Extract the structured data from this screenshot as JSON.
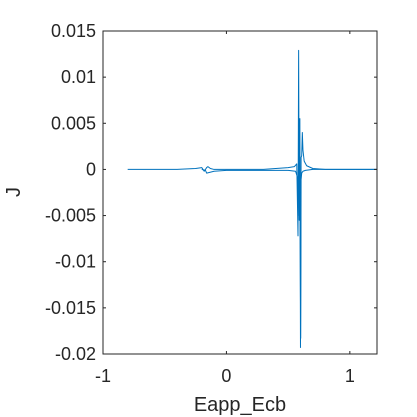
{
  "chart_data": {
    "type": "line",
    "title": "",
    "xlabel": "Eapp_Ecb",
    "ylabel": "J",
    "xlim": [
      -1,
      1.22
    ],
    "ylim": [
      -0.02,
      0.015
    ],
    "xticks": [
      -1,
      0,
      1
    ],
    "xtick_labels": [
      "-1",
      "0",
      "1"
    ],
    "yticks": [
      -0.02,
      -0.015,
      -0.01,
      -0.005,
      0,
      0.005,
      0.01,
      0.015
    ],
    "ytick_labels": [
      "-0.02",
      "-0.015",
      "-0.01",
      "-0.005",
      "0",
      "0.005",
      "0.01",
      "0.015"
    ],
    "grid": false,
    "line_color": "#0072BD",
    "series": [
      {
        "x": [
          -0.8,
          -0.4,
          -0.25,
          -0.2,
          -0.18,
          -0.16,
          -0.15,
          -0.13,
          -0.1,
          0.0,
          0.1,
          0.2,
          0.3,
          0.4,
          0.5,
          0.55,
          0.57,
          0.58,
          0.585,
          0.59,
          0.595,
          0.6,
          0.605,
          0.61,
          0.615,
          0.62,
          0.63,
          0.65,
          0.7,
          0.8,
          1.0,
          1.22
        ],
        "y": [
          0,
          0,
          0.0001,
          0.0002,
          -0.0002,
          0.0002,
          0.0003,
          0.0001,
          0,
          0,
          0,
          0,
          0,
          0.0001,
          0.0002,
          0.0003,
          0.0006,
          -0.0072,
          0.0129,
          -0.0055,
          0.0055,
          -0.0193,
          0.0013,
          0.0015,
          0.004,
          0.0021,
          0.0009,
          0.0004,
          0.0001,
          0,
          0,
          0
        ]
      },
      {
        "x": [
          -0.2,
          -0.17,
          -0.16,
          -0.1,
          0.0,
          0.2,
          0.4,
          0.5,
          0.56,
          0.575,
          0.58,
          0.585,
          0.59,
          0.595,
          0.6,
          0.602,
          0.605,
          0.61,
          0.62,
          0.64,
          0.7,
          0.8,
          1.0,
          1.22
        ],
        "y": [
          0,
          -0.0001,
          -0.0004,
          -0.0002,
          -0.0001,
          -0.0001,
          -0.0001,
          -0.0001,
          -0.0002,
          -0.0008,
          -0.0032,
          0.0007,
          -0.005,
          -0.001,
          -0.014,
          -0.0183,
          -0.0011,
          -0.0004,
          -0.0002,
          -0.0001,
          0,
          0,
          0,
          0
        ]
      }
    ]
  }
}
